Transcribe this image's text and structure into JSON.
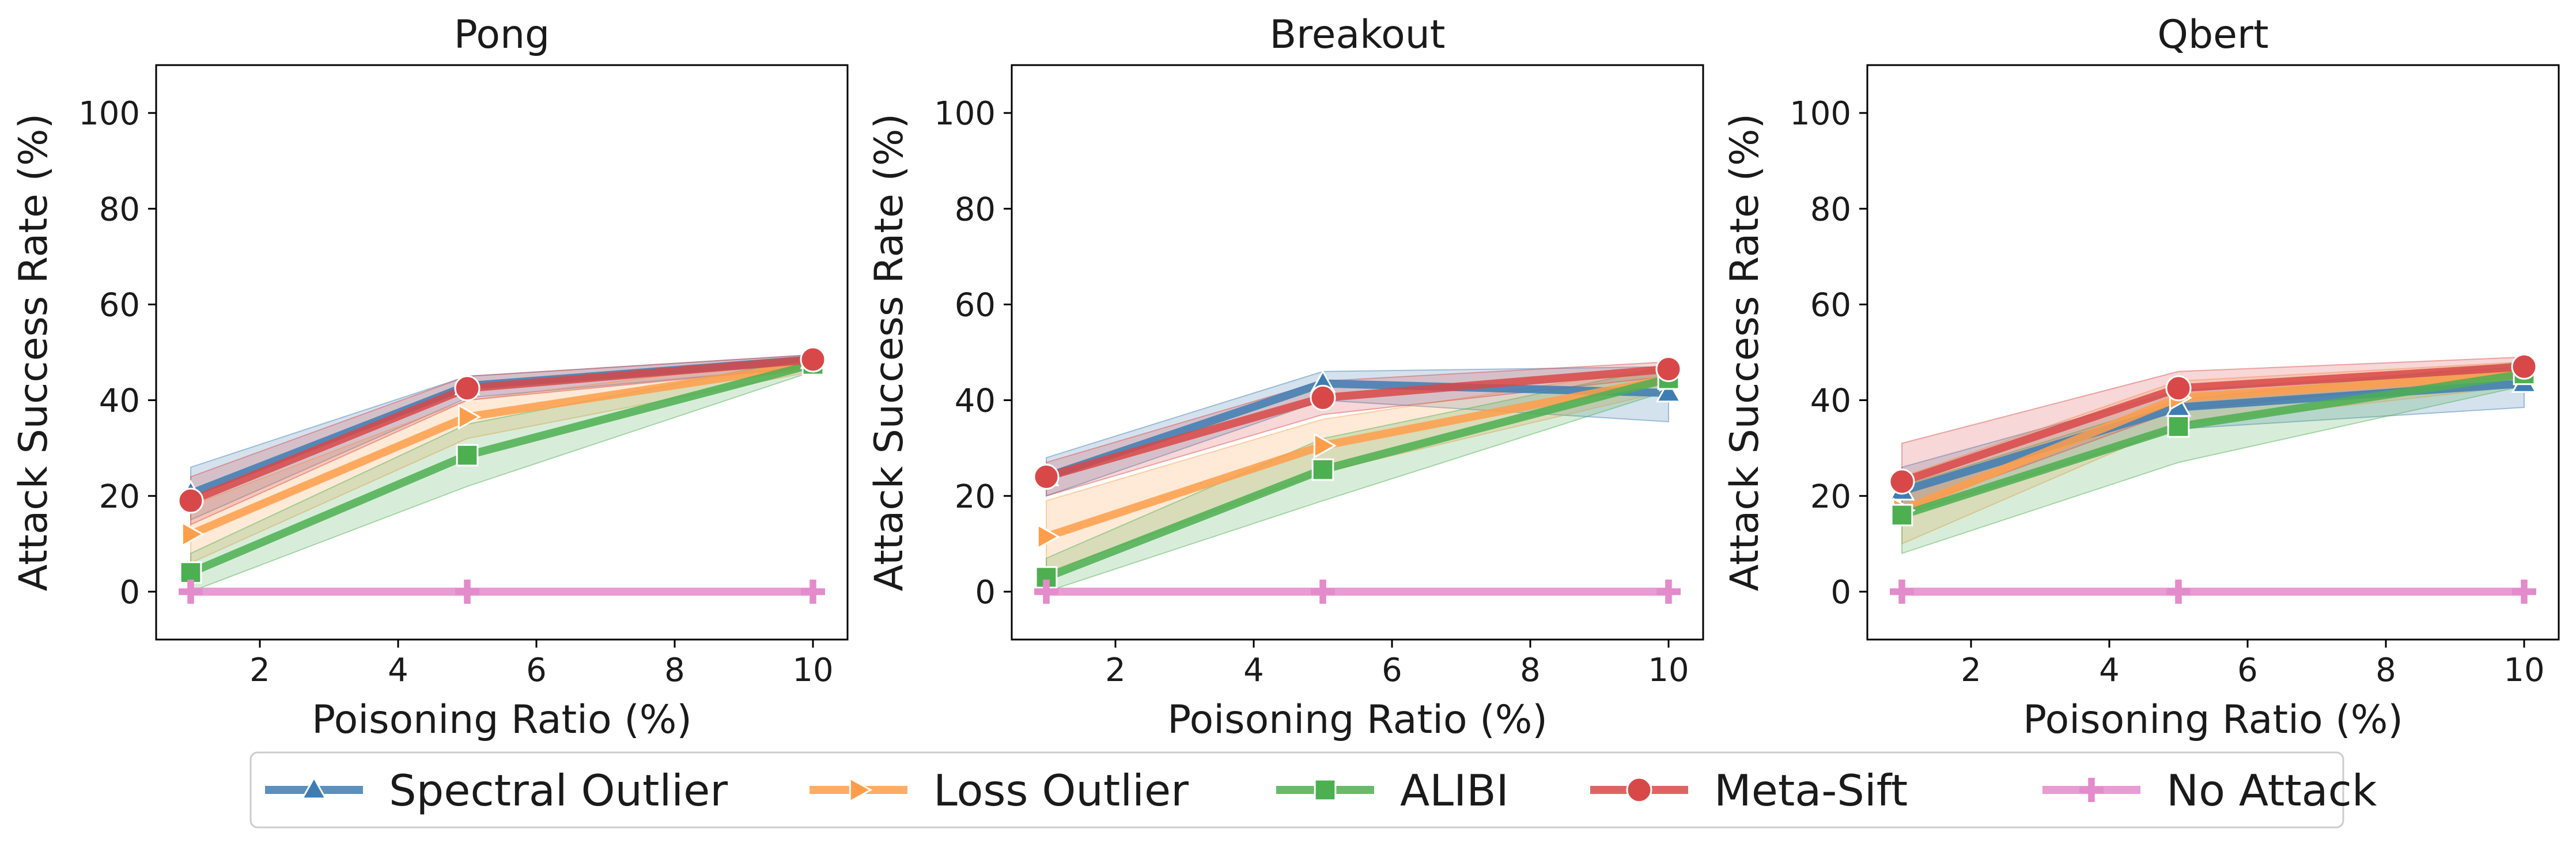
{
  "chart_data": [
    {
      "type": "line",
      "title": "Pong",
      "xlabel": "Poisoning Ratio (%)",
      "ylabel": "Attack Success Rate (%)",
      "xlim": [
        0.5,
        10.5
      ],
      "ylim": [
        -10,
        110
      ],
      "xticks": [
        2,
        4,
        6,
        8,
        10
      ],
      "yticks": [
        0,
        20,
        40,
        60,
        80,
        100
      ],
      "x": [
        1,
        5,
        10
      ],
      "series": [
        {
          "name": "Spectral Outlier",
          "values": [
            20.5,
            43,
            48.5
          ],
          "lower": [
            15,
            40.5,
            47
          ],
          "upper": [
            26,
            45,
            49.5
          ]
        },
        {
          "name": "Loss Outlier",
          "values": [
            12,
            36.5,
            47.5
          ],
          "lower": [
            6,
            32,
            46
          ],
          "upper": [
            18,
            40,
            49
          ]
        },
        {
          "name": "ALIBI",
          "values": [
            4,
            28.5,
            47.5
          ],
          "lower": [
            0,
            22,
            46
          ],
          "upper": [
            8,
            35,
            49
          ]
        },
        {
          "name": "Meta-Sift",
          "values": [
            19,
            42.5,
            48.5
          ],
          "lower": [
            14,
            40,
            47
          ],
          "upper": [
            24,
            45,
            49.5
          ]
        },
        {
          "name": "No Attack",
          "values": [
            0,
            0,
            0
          ],
          "lower": [
            0,
            0,
            0
          ],
          "upper": [
            0,
            0,
            0
          ]
        }
      ]
    },
    {
      "type": "line",
      "title": "Breakout",
      "xlabel": "Poisoning Ratio (%)",
      "ylabel": "Attack Success Rate (%)",
      "xlim": [
        0.5,
        10.5
      ],
      "ylim": [
        -10,
        110
      ],
      "xticks": [
        2,
        4,
        6,
        8,
        10
      ],
      "yticks": [
        0,
        20,
        40,
        60,
        80,
        100
      ],
      "x": [
        1,
        5,
        10
      ],
      "series": [
        {
          "name": "Spectral Outlier",
          "values": [
            24,
            43.5,
            41.5
          ],
          "lower": [
            20,
            40,
            35.5
          ],
          "upper": [
            28,
            46,
            47
          ]
        },
        {
          "name": "Loss Outlier",
          "values": [
            11.5,
            30.5,
            44.5
          ],
          "lower": [
            4,
            25,
            42
          ],
          "upper": [
            19,
            36,
            47
          ]
        },
        {
          "name": "ALIBI",
          "values": [
            3,
            25.5,
            44.5
          ],
          "lower": [
            0,
            19,
            42
          ],
          "upper": [
            7,
            32,
            47
          ]
        },
        {
          "name": "Meta-Sift",
          "values": [
            24,
            40.5,
            46.5
          ],
          "lower": [
            20,
            37,
            45
          ],
          "upper": [
            27,
            44,
            48
          ]
        },
        {
          "name": "No Attack",
          "values": [
            0,
            0,
            0
          ],
          "lower": [
            0,
            0,
            0
          ],
          "upper": [
            0,
            0,
            0
          ]
        }
      ]
    },
    {
      "type": "line",
      "title": "Qbert",
      "xlabel": "Poisoning Ratio (%)",
      "ylabel": "Attack Success Rate (%)",
      "xlim": [
        0.5,
        10.5
      ],
      "ylim": [
        -10,
        110
      ],
      "xticks": [
        2,
        4,
        6,
        8,
        10
      ],
      "yticks": [
        0,
        20,
        40,
        60,
        80,
        100
      ],
      "x": [
        1,
        5,
        10
      ],
      "series": [
        {
          "name": "Spectral Outlier",
          "values": [
            21,
            38.5,
            43.5
          ],
          "lower": [
            16,
            34,
            38.5
          ],
          "upper": [
            26,
            42,
            47
          ]
        },
        {
          "name": "Loss Outlier",
          "values": [
            17,
            40.5,
            45.5
          ],
          "lower": [
            10,
            35,
            43
          ],
          "upper": [
            24,
            44,
            48
          ]
        },
        {
          "name": "ALIBI",
          "values": [
            16,
            34.5,
            45.5
          ],
          "lower": [
            8,
            27,
            43
          ],
          "upper": [
            22,
            40,
            48
          ]
        },
        {
          "name": "Meta-Sift",
          "values": [
            23,
            42.5,
            47
          ],
          "lower": [
            17,
            38,
            45
          ],
          "upper": [
            31,
            46,
            49
          ]
        },
        {
          "name": "No Attack",
          "values": [
            0,
            0,
            0
          ],
          "lower": [
            0,
            0,
            0
          ],
          "upper": [
            0,
            0,
            0
          ]
        }
      ]
    }
  ],
  "legend": {
    "items": [
      {
        "name": "Spectral Outlier",
        "marker": "triangle-up"
      },
      {
        "name": "Loss Outlier",
        "marker": "triangle-right"
      },
      {
        "name": "ALIBI",
        "marker": "square"
      },
      {
        "name": "Meta-Sift",
        "marker": "circle"
      },
      {
        "name": "No Attack",
        "marker": "plus"
      }
    ],
    "placement": "bottom-center"
  },
  "colors": {
    "Spectral Outlier": "#3d7db3",
    "Loss Outlier": "#ff9e4a",
    "ALIBI": "#4caf50",
    "Meta-Sift": "#d94848",
    "No Attack": "#e48bcb"
  }
}
